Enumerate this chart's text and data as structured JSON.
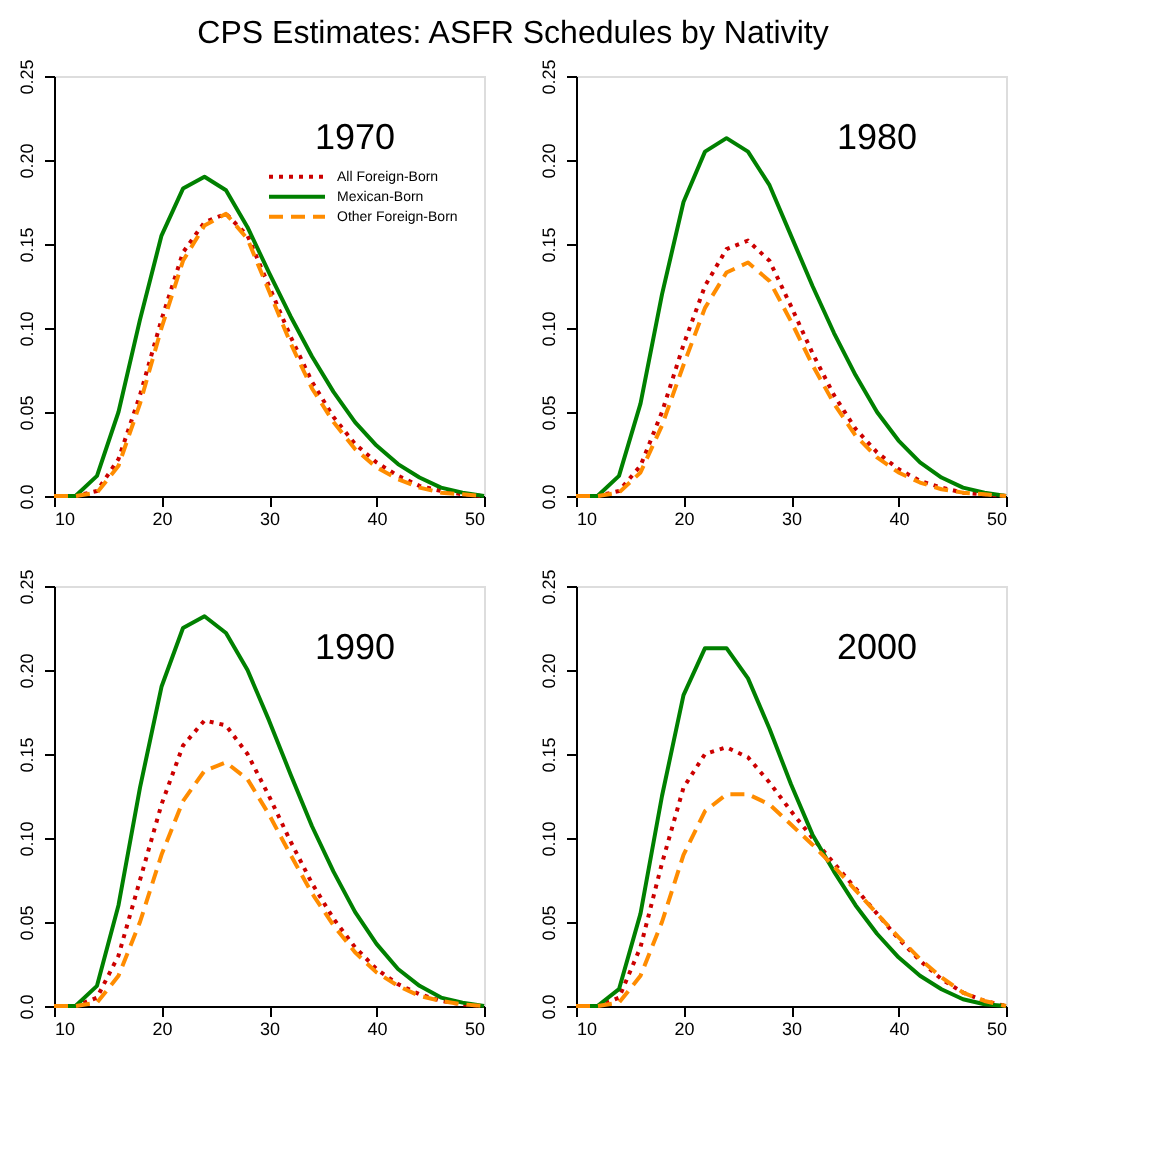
{
  "chart_data": [
    {
      "type": "line",
      "title": "CPS Estimates: ASFR Schedules by Nativity",
      "annotations": [
        "1970"
      ],
      "legend": "top right",
      "grid": false,
      "xlim": [
        10,
        50
      ],
      "ylim": [
        0,
        0.25
      ],
      "xticks": [
        10,
        20,
        30,
        40,
        50
      ],
      "yticks": [
        {
          "value": 0,
          "label": "0.0"
        },
        0.05,
        {
          "value": 0.1,
          "label": "0.10"
        },
        0.15,
        {
          "value": 0.2,
          "label": "0.20"
        },
        0.25
      ],
      "x": [
        10,
        12,
        14,
        16,
        18,
        20,
        22,
        24,
        26,
        28,
        30,
        32,
        34,
        36,
        38,
        40,
        42,
        44,
        46,
        48,
        50
      ],
      "series": [
        {
          "name": "All Foreign-Born",
          "color": "#cc0000",
          "line_style": "dotted",
          "values": [
            0,
            0,
            0.003,
            0.022,
            0.06,
            0.105,
            0.145,
            0.163,
            0.168,
            0.155,
            0.125,
            0.095,
            0.068,
            0.047,
            0.031,
            0.02,
            0.012,
            0.006,
            0.003,
            0.001,
            0
          ]
        },
        {
          "name": "Mexican-Born",
          "color": "#008000",
          "line_style": "solid",
          "values": [
            0,
            0,
            0.012,
            0.05,
            0.105,
            0.155,
            0.183,
            0.19,
            0.182,
            0.16,
            0.133,
            0.107,
            0.083,
            0.062,
            0.044,
            0.03,
            0.019,
            0.011,
            0.005,
            0.002,
            0
          ]
        },
        {
          "name": "Other Foreign-Born",
          "color": "#ff8c00",
          "line_style": "dashed",
          "values": [
            0,
            0,
            0.002,
            0.018,
            0.055,
            0.1,
            0.14,
            0.161,
            0.168,
            0.153,
            0.122,
            0.091,
            0.064,
            0.044,
            0.028,
            0.017,
            0.01,
            0.005,
            0.002,
            0.001,
            0
          ]
        }
      ]
    },
    {
      "type": "line",
      "annotations": [
        "1980"
      ],
      "legend": false,
      "grid": false,
      "xlim": [
        10,
        50
      ],
      "ylim": [
        0,
        0.25
      ],
      "xticks": [
        10,
        20,
        30,
        40,
        50
      ],
      "yticks": [
        {
          "value": 0,
          "label": "0.0"
        },
        0.05,
        {
          "value": 0.1,
          "label": "0.10"
        },
        0.15,
        {
          "value": 0.2,
          "label": "0.20"
        },
        0.25
      ],
      "x": [
        10,
        12,
        14,
        16,
        18,
        20,
        22,
        24,
        26,
        28,
        30,
        32,
        34,
        36,
        38,
        40,
        42,
        44,
        46,
        48,
        50
      ],
      "series": [
        {
          "color": "#cc0000",
          "line_style": "dotted",
          "values": [
            0,
            0,
            0.003,
            0.018,
            0.05,
            0.09,
            0.125,
            0.147,
            0.152,
            0.14,
            0.113,
            0.085,
            0.06,
            0.04,
            0.026,
            0.016,
            0.009,
            0.005,
            0.002,
            0.001,
            0
          ]
        },
        {
          "color": "#008000",
          "line_style": "solid",
          "values": [
            0,
            0,
            0.012,
            0.055,
            0.12,
            0.175,
            0.205,
            0.213,
            0.205,
            0.185,
            0.155,
            0.125,
            0.097,
            0.072,
            0.05,
            0.033,
            0.02,
            0.011,
            0.005,
            0.002,
            0
          ]
        },
        {
          "color": "#ff8c00",
          "line_style": "dashed",
          "values": [
            0,
            0,
            0.002,
            0.014,
            0.042,
            0.078,
            0.112,
            0.133,
            0.139,
            0.128,
            0.104,
            0.078,
            0.055,
            0.036,
            0.023,
            0.014,
            0.008,
            0.004,
            0.002,
            0.001,
            0
          ]
        }
      ]
    },
    {
      "type": "line",
      "annotations": [
        "1990"
      ],
      "legend": false,
      "grid": false,
      "xlim": [
        10,
        50
      ],
      "ylim": [
        0,
        0.25
      ],
      "xticks": [
        10,
        20,
        30,
        40,
        50
      ],
      "yticks": [
        {
          "value": 0,
          "label": "0.0"
        },
        0.05,
        {
          "value": 0.1,
          "label": "0.10"
        },
        0.15,
        {
          "value": 0.2,
          "label": "0.20"
        },
        0.25
      ],
      "x": [
        10,
        12,
        14,
        16,
        18,
        20,
        22,
        24,
        26,
        28,
        30,
        32,
        34,
        36,
        38,
        40,
        42,
        44,
        46,
        48,
        50
      ],
      "series": [
        {
          "color": "#cc0000",
          "line_style": "dotted",
          "values": [
            0,
            0,
            0.005,
            0.03,
            0.075,
            0.12,
            0.155,
            0.17,
            0.167,
            0.15,
            0.125,
            0.098,
            0.073,
            0.052,
            0.035,
            0.022,
            0.013,
            0.007,
            0.003,
            0.001,
            0
          ]
        },
        {
          "color": "#008000",
          "line_style": "solid",
          "values": [
            0,
            0,
            0.012,
            0.06,
            0.13,
            0.19,
            0.225,
            0.232,
            0.222,
            0.2,
            0.17,
            0.138,
            0.107,
            0.08,
            0.056,
            0.037,
            0.022,
            0.012,
            0.005,
            0.002,
            0
          ]
        },
        {
          "color": "#ff8c00",
          "line_style": "dashed",
          "values": [
            0,
            0,
            0.002,
            0.018,
            0.05,
            0.09,
            0.122,
            0.14,
            0.145,
            0.135,
            0.114,
            0.09,
            0.067,
            0.048,
            0.032,
            0.02,
            0.012,
            0.006,
            0.003,
            0.001,
            0
          ]
        }
      ]
    },
    {
      "type": "line",
      "annotations": [
        "2000"
      ],
      "legend": false,
      "grid": false,
      "xlim": [
        10,
        50
      ],
      "ylim": [
        0,
        0.25
      ],
      "xticks": [
        10,
        20,
        30,
        40,
        50
      ],
      "yticks": [
        {
          "value": 0,
          "label": "0.0"
        },
        0.05,
        {
          "value": 0.1,
          "label": "0.10"
        },
        0.15,
        {
          "value": 0.2,
          "label": "0.20"
        },
        0.25
      ],
      "x": [
        10,
        12,
        14,
        16,
        18,
        20,
        22,
        24,
        26,
        28,
        30,
        32,
        34,
        36,
        38,
        40,
        42,
        44,
        46,
        48,
        50
      ],
      "series": [
        {
          "color": "#cc0000",
          "line_style": "dotted",
          "values": [
            0,
            0,
            0.005,
            0.035,
            0.085,
            0.13,
            0.15,
            0.154,
            0.148,
            0.133,
            0.116,
            0.1,
            0.085,
            0.07,
            0.055,
            0.04,
            0.027,
            0.016,
            0.008,
            0.003,
            0
          ]
        },
        {
          "color": "#008000",
          "line_style": "solid",
          "values": [
            0,
            0,
            0.01,
            0.055,
            0.125,
            0.185,
            0.213,
            0.213,
            0.195,
            0.165,
            0.132,
            0.102,
            0.08,
            0.06,
            0.043,
            0.029,
            0.018,
            0.01,
            0.004,
            0.001,
            0
          ]
        },
        {
          "color": "#ff8c00",
          "line_style": "dashed",
          "values": [
            0,
            0,
            0.002,
            0.018,
            0.05,
            0.09,
            0.116,
            0.126,
            0.126,
            0.12,
            0.108,
            0.096,
            0.083,
            0.069,
            0.055,
            0.041,
            0.028,
            0.017,
            0.008,
            0.003,
            0
          ]
        }
      ]
    }
  ]
}
